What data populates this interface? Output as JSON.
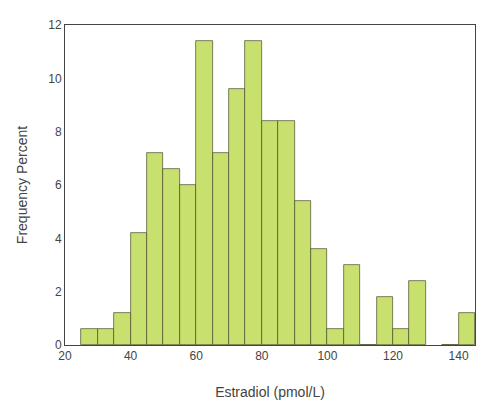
{
  "chart_data": {
    "type": "bar",
    "x": [
      25,
      30,
      35,
      40,
      45,
      50,
      55,
      60,
      65,
      70,
      75,
      80,
      85,
      90,
      95,
      100,
      105,
      110,
      115,
      120,
      125,
      135,
      140
    ],
    "values": [
      0.6,
      0.6,
      1.2,
      4.2,
      7.2,
      6.6,
      6.0,
      11.4,
      7.2,
      9.6,
      11.4,
      8.4,
      8.4,
      5.4,
      3.6,
      0.6,
      3.0,
      0.0,
      1.8,
      0.6,
      2.4,
      0.0,
      1.2
    ],
    "bin_width": 5,
    "color": "#c8e06e",
    "xlabel": "Estradiol (pmol/L)",
    "ylabel": "Frequency Percent",
    "xlim": [
      20,
      145
    ],
    "ylim": [
      0,
      12
    ],
    "xticks": [
      20,
      40,
      60,
      80,
      100,
      120,
      140
    ],
    "yticks": [
      0,
      2,
      4,
      6,
      8,
      10,
      12
    ],
    "grid": false
  }
}
